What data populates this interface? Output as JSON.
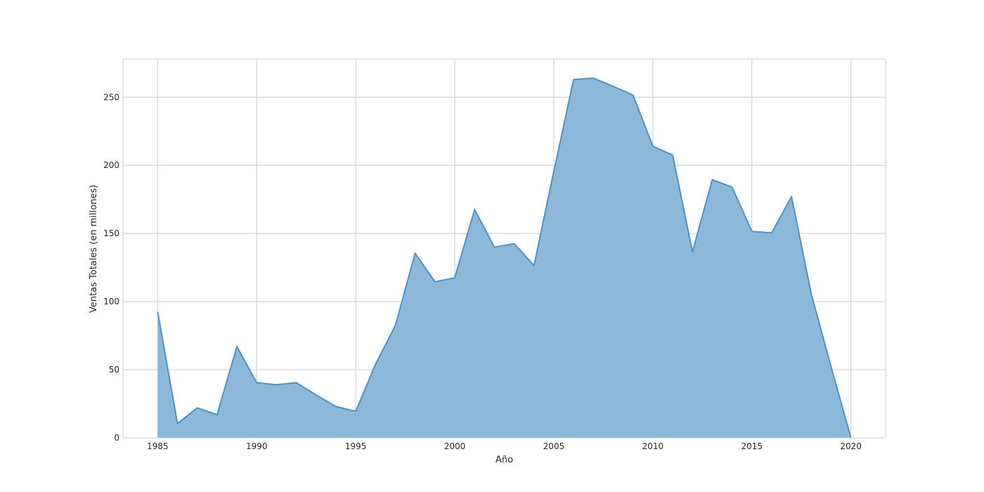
{
  "chart_data": {
    "type": "area",
    "title": "",
    "xlabel": "Año",
    "ylabel": "Ventas Totales (en millones)",
    "xlim": [
      1983.25,
      2021.75
    ],
    "ylim": [
      0,
      278
    ],
    "xticks": [
      1985,
      1990,
      1995,
      2000,
      2005,
      2010,
      2015,
      2020
    ],
    "yticks": [
      0,
      50,
      100,
      150,
      200,
      250
    ],
    "grid": true,
    "legend": "none",
    "colors": {
      "fill": "#8cb8d9",
      "line": "#4c92c3",
      "grid": "#cccccc",
      "spine": "#cccccc"
    },
    "x": [
      1985,
      1986,
      1987,
      1988,
      1989,
      1990,
      1991,
      1992,
      1993,
      1994,
      1995,
      1996,
      1997,
      1998,
      1999,
      2000,
      2001,
      2002,
      2003,
      2004,
      2005,
      2006,
      2007,
      2008,
      2009,
      2010,
      2011,
      2012,
      2013,
      2014,
      2015,
      2016,
      2017,
      2018,
      2019,
      2020
    ],
    "y": [
      92.5,
      10.5,
      22,
      17,
      67,
      40.5,
      39,
      40.5,
      31.5,
      23,
      19.5,
      54,
      82.5,
      135.5,
      114.5,
      117.5,
      167.5,
      140,
      142.5,
      126.5,
      195.5,
      263,
      264,
      258,
      251.5,
      214,
      207.5,
      136.5,
      189.5,
      184,
      151.5,
      150.5,
      177,
      105.5,
      52,
      0
    ]
  }
}
